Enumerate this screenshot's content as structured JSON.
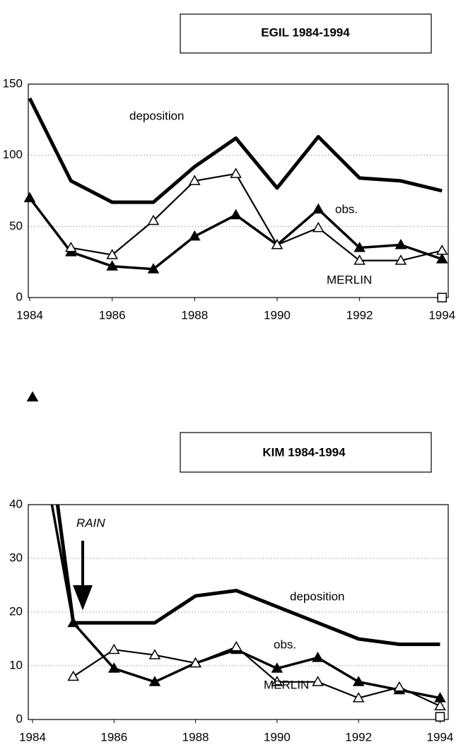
{
  "chart_data": [
    {
      "type": "line",
      "title": "EGIL 1984-1994",
      "x": [
        1984,
        1985,
        1986,
        1987,
        1988,
        1989,
        1990,
        1991,
        1992,
        1993,
        1994
      ],
      "xlim": [
        1984,
        1994.15
      ],
      "xticks": [
        1984,
        1986,
        1988,
        1990,
        1992,
        1994
      ],
      "ylim": [
        0,
        150
      ],
      "yticks": [
        0,
        50,
        100,
        150
      ],
      "grid": true,
      "series": [
        {
          "name": "deposition",
          "color": "#000000",
          "marker": "none",
          "values": [
            140,
            82,
            67,
            67,
            92,
            112,
            77,
            113,
            84,
            82,
            75
          ]
        },
        {
          "name": "obs.",
          "color": "#000000",
          "marker": "triangle-filled",
          "values": [
            70,
            32,
            22,
            20,
            43,
            58,
            37,
            62,
            35,
            37,
            27
          ]
        },
        {
          "name": "MERLIN",
          "color": "#000000",
          "marker": "triangle-open",
          "values": [
            null,
            35,
            30,
            54,
            82,
            87,
            37,
            49,
            26,
            26,
            33
          ]
        },
        {
          "color": "#000000",
          "marker": "square-open",
          "values": [
            null,
            null,
            null,
            null,
            null,
            null,
            null,
            null,
            null,
            null,
            0
          ]
        }
      ]
    },
    {
      "type": "line",
      "title": "KIM 1984-1994",
      "annotation": "RAIN",
      "x": [
        1984,
        1985,
        1986,
        1987,
        1988,
        1989,
        1990,
        1991,
        1992,
        1993,
        1994
      ],
      "xlim": [
        1984,
        1994.2
      ],
      "xticks": [
        1984,
        1986,
        1988,
        1990,
        1992,
        1994
      ],
      "ylim": [
        0,
        40
      ],
      "yticks": [
        0,
        10,
        20,
        30,
        40
      ],
      "grid": true,
      "series": [
        {
          "name": "deposition",
          "color": "#000000",
          "marker": "none",
          "values": [
            75,
            18,
            18,
            18,
            23,
            24,
            21,
            18,
            15,
            14,
            14
          ]
        },
        {
          "name": "obs.",
          "color": "#000000",
          "marker": "triangle-filled",
          "values": [
            60,
            18,
            9.5,
            7,
            10.5,
            13,
            9.5,
            11.5,
            7,
            5.5,
            4
          ]
        },
        {
          "name": "MERLIN",
          "color": "#000000",
          "marker": "triangle-open",
          "values": [
            null,
            8,
            13,
            12,
            10.5,
            13.5,
            7,
            7,
            4,
            6,
            2.5
          ]
        },
        {
          "color": "#000000",
          "marker": "square-open",
          "values": [
            null,
            null,
            null,
            null,
            null,
            null,
            null,
            null,
            null,
            null,
            0.5
          ]
        }
      ]
    }
  ]
}
